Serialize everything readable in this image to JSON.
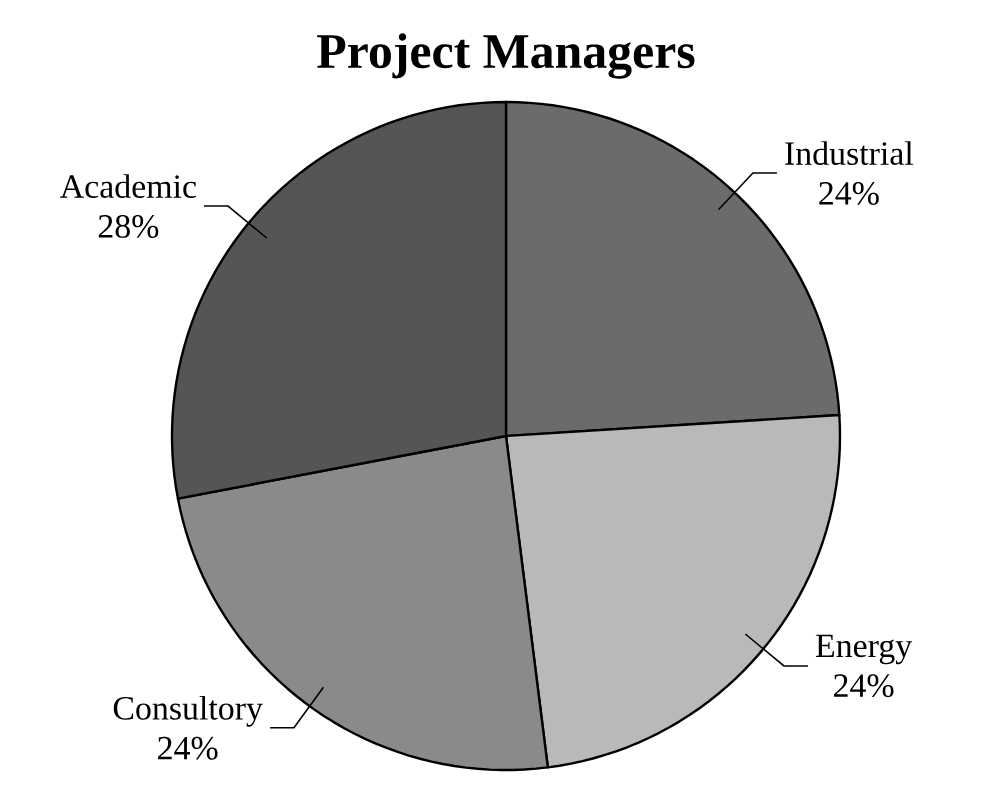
{
  "chart_data": {
    "type": "pie",
    "title": "Project Managers",
    "categories": [
      "Industrial",
      "Energy",
      "Consultory",
      "Academic"
    ],
    "values": [
      24,
      24,
      24,
      28
    ],
    "colors": [
      "#6b6b6b",
      "#b9b9b9",
      "#8a8a8a",
      "#555555"
    ],
    "value_labels": [
      "24%",
      "24%",
      "24%",
      "28%"
    ]
  }
}
